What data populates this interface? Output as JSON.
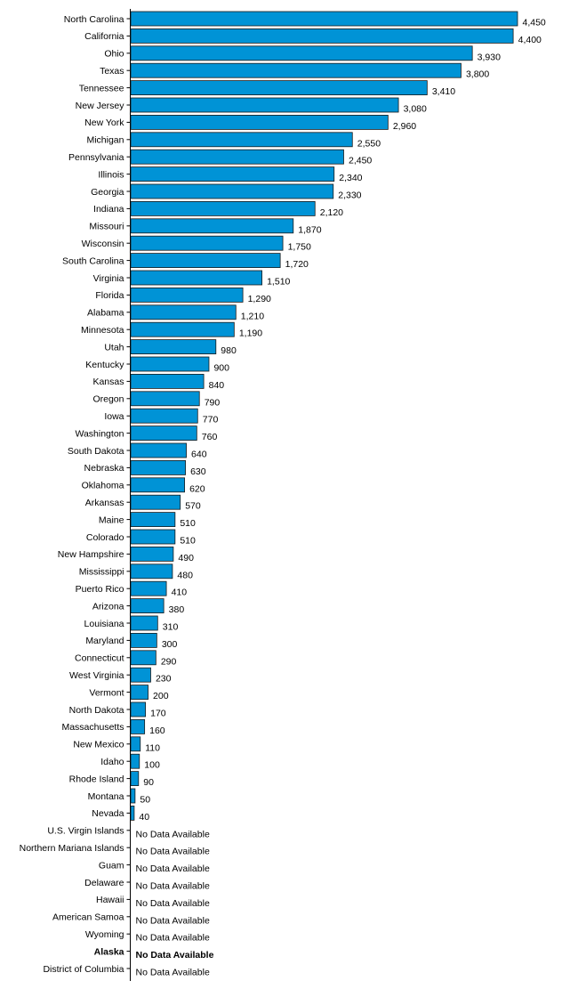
{
  "chart_data": {
    "type": "bar",
    "orientation": "horizontal",
    "bar_color": "#0093D6",
    "missing_label": "No Data Available",
    "categories": [
      "North Carolina",
      "California",
      "Ohio",
      "Texas",
      "Tennessee",
      "New Jersey",
      "New York",
      "Michigan",
      "Pennsylvania",
      "Illinois",
      "Georgia",
      "Indiana",
      "Missouri",
      "Wisconsin",
      "South Carolina",
      "Virginia",
      "Florida",
      "Alabama",
      "Minnesota",
      "Utah",
      "Kentucky",
      "Kansas",
      "Oregon",
      "Iowa",
      "Washington",
      "South Dakota",
      "Nebraska",
      "Oklahoma",
      "Arkansas",
      "Maine",
      "Colorado",
      "New Hampshire",
      "Mississippi",
      "Puerto Rico",
      "Arizona",
      "Louisiana",
      "Maryland",
      "Connecticut",
      "West Virginia",
      "Vermont",
      "North Dakota",
      "Massachusetts",
      "New Mexico",
      "Idaho",
      "Rhode Island",
      "Montana",
      "Nevada",
      "U.S. Virgin Islands",
      "Northern Mariana Islands",
      "Guam",
      "Delaware",
      "Hawaii",
      "American Samoa",
      "Wyoming",
      "Alaska",
      "District of Columbia"
    ],
    "values": [
      4450,
      4400,
      3930,
      3800,
      3410,
      3080,
      2960,
      2550,
      2450,
      2340,
      2330,
      2120,
      1870,
      1750,
      1720,
      1510,
      1290,
      1210,
      1190,
      980,
      900,
      840,
      790,
      770,
      760,
      640,
      630,
      620,
      570,
      510,
      510,
      490,
      480,
      410,
      380,
      310,
      300,
      290,
      230,
      200,
      170,
      160,
      110,
      100,
      90,
      50,
      40,
      null,
      null,
      null,
      null,
      null,
      null,
      null,
      null,
      null
    ],
    "value_labels": [
      "4,450",
      "4,400",
      "3,930",
      "3,800",
      "3,410",
      "3,080",
      "2,960",
      "2,550",
      "2,450",
      "2,340",
      "2,330",
      "2,120",
      "1,870",
      "1,750",
      "1,720",
      "1,510",
      "1,290",
      "1,210",
      "1,190",
      "980",
      "900",
      "840",
      "790",
      "770",
      "760",
      "640",
      "630",
      "620",
      "570",
      "510",
      "510",
      "490",
      "480",
      "410",
      "380",
      "310",
      "300",
      "290",
      "230",
      "200",
      "170",
      "160",
      "110",
      "100",
      "90",
      "50",
      "40",
      "No Data Available",
      "No Data Available",
      "No Data Available",
      "No Data Available",
      "No Data Available",
      "No Data Available",
      "No Data Available",
      "No Data Available",
      "No Data Available"
    ],
    "highlighted_category": "Alaska",
    "xlim": [
      0,
      4450
    ],
    "grid": false,
    "legend": "none"
  }
}
